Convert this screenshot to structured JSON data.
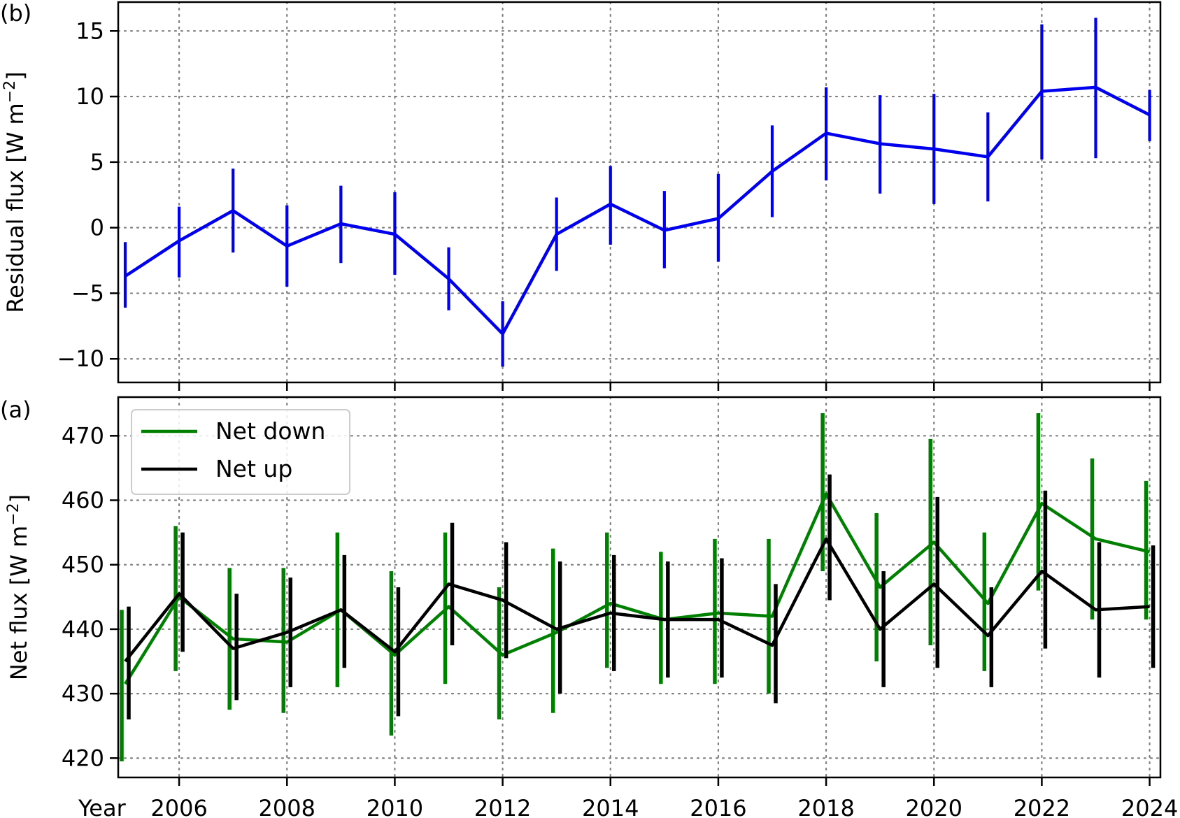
{
  "chart_data": [
    {
      "type": "line",
      "panel_label": "(b)",
      "ylabel": "Residual flux [W m",
      "ylabel_unit_exponent": "−2",
      "ylabel_close": "]",
      "xlim": [
        2004.87,
        2024.2
      ],
      "ylim": [
        -11.8,
        17.2
      ],
      "yticks": [
        -10,
        -5,
        0,
        5,
        10,
        15
      ],
      "ytick_labels": [
        "−10",
        "−5",
        "0",
        "5",
        "10",
        "15"
      ],
      "xticks": [
        2006,
        2008,
        2010,
        2012,
        2014,
        2016,
        2018,
        2020,
        2022,
        2024
      ],
      "grid": true,
      "series": [
        {
          "color": "#0000ee",
          "x": [
            2005,
            2006,
            2007,
            2008,
            2009,
            2010,
            2011,
            2012,
            2013,
            2014,
            2015,
            2016,
            2017,
            2018,
            2019,
            2020,
            2021,
            2022,
            2023,
            2024
          ],
          "y": [
            -3.7,
            -1.0,
            1.3,
            -1.4,
            0.3,
            -0.5,
            -3.9,
            -8.1,
            -0.5,
            1.8,
            -0.2,
            0.7,
            4.3,
            7.2,
            6.4,
            6.0,
            5.4,
            10.4,
            10.7,
            8.6
          ],
          "err_low": [
            -6.1,
            -3.8,
            -1.9,
            -4.5,
            -2.7,
            -3.6,
            -6.3,
            -10.6,
            -3.3,
            -1.3,
            -3.1,
            -2.6,
            0.8,
            3.6,
            2.6,
            1.8,
            2.0,
            5.2,
            5.3,
            6.6
          ],
          "err_high": [
            -1.1,
            1.6,
            4.5,
            1.7,
            3.2,
            2.7,
            -1.5,
            -5.6,
            2.3,
            4.7,
            2.8,
            4.1,
            7.8,
            10.7,
            10.1,
            10.2,
            8.8,
            15.5,
            16.0,
            10.5
          ]
        }
      ]
    },
    {
      "type": "line",
      "panel_label": "(a)",
      "ylabel": "Net flux [W m",
      "ylabel_unit_exponent": "−2",
      "ylabel_close": "]",
      "xlim": [
        2004.87,
        2024.2
      ],
      "ylim": [
        417.0,
        476.0
      ],
      "yticks": [
        420,
        430,
        440,
        450,
        460,
        470
      ],
      "ytick_labels": [
        "420",
        "430",
        "440",
        "450",
        "460",
        "470"
      ],
      "xticks": [
        2006,
        2008,
        2010,
        2012,
        2014,
        2016,
        2018,
        2020,
        2022,
        2024
      ],
      "xtick_labels": [
        "2006",
        "2008",
        "2010",
        "2012",
        "2014",
        "2016",
        "2018",
        "2020",
        "2022",
        "2024"
      ],
      "xlabel": "Year",
      "grid": true,
      "legend_position": "top-left",
      "series": [
        {
          "name": "Net down",
          "color": "#008000",
          "x": [
            2005,
            2006,
            2007,
            2008,
            2009,
            2010,
            2011,
            2012,
            2013,
            2014,
            2015,
            2016,
            2017,
            2018,
            2019,
            2020,
            2021,
            2022,
            2023,
            2024
          ],
          "y": [
            431.5,
            445.0,
            438.5,
            438.0,
            443.0,
            436.0,
            443.5,
            436.0,
            439.5,
            444.0,
            441.5,
            442.5,
            442.0,
            461.0,
            446.5,
            453.5,
            444.0,
            459.5,
            454.0,
            452.0
          ],
          "err_low": [
            419.5,
            433.5,
            427.5,
            427.0,
            431.0,
            423.5,
            431.5,
            426.0,
            427.0,
            434.0,
            431.5,
            431.5,
            430.0,
            449.0,
            435.0,
            437.5,
            433.5,
            446.0,
            441.5,
            441.5
          ],
          "err_high": [
            443.0,
            456.0,
            449.5,
            449.5,
            455.0,
            449.0,
            455.0,
            446.5,
            452.5,
            455.0,
            452.0,
            454.0,
            454.0,
            473.5,
            458.0,
            469.5,
            455.0,
            473.5,
            466.5,
            463.0
          ]
        },
        {
          "name": "Net up",
          "color": "#000000",
          "x": [
            2005,
            2006,
            2007,
            2008,
            2009,
            2010,
            2011,
            2012,
            2013,
            2014,
            2015,
            2016,
            2017,
            2018,
            2019,
            2020,
            2021,
            2022,
            2023,
            2024
          ],
          "y": [
            435.0,
            445.5,
            437.0,
            439.5,
            443.0,
            436.5,
            447.0,
            444.5,
            440.0,
            442.5,
            441.5,
            441.5,
            437.5,
            454.0,
            440.0,
            447.0,
            439.0,
            449.0,
            443.0,
            443.5
          ],
          "err_low": [
            426.0,
            436.5,
            429.0,
            431.0,
            434.0,
            426.5,
            437.5,
            435.5,
            430.0,
            433.5,
            432.5,
            432.5,
            428.5,
            444.5,
            431.0,
            434.0,
            431.0,
            437.0,
            432.5,
            434.0
          ],
          "err_high": [
            443.5,
            455.0,
            445.5,
            448.0,
            451.5,
            446.5,
            456.5,
            453.5,
            450.5,
            451.5,
            450.5,
            451.0,
            447.0,
            464.0,
            449.0,
            460.5,
            446.5,
            461.5,
            453.5,
            453.0
          ]
        }
      ]
    }
  ]
}
